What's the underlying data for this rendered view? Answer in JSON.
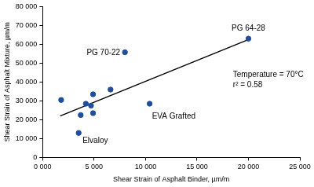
{
  "chart_data": {
    "type": "scatter",
    "x_label": "Shear Strain of Asphalt Binder, µm/m",
    "y_label": "Shear Strain of Asphalt Mixture, µm/m",
    "series": [
      {
        "type": "scatter",
        "color": "#1f4e9e",
        "marker": "circle",
        "x": [
          1800,
          3500,
          3700,
          4200,
          4700,
          4900,
          4900,
          6600,
          8000,
          10400,
          20000
        ],
        "values": [
          30500,
          13000,
          22500,
          28500,
          27500,
          33500,
          23500,
          36000,
          55800,
          28500,
          63000
        ],
        "point_labels": [
          null,
          "Elvaloy",
          null,
          null,
          null,
          null,
          null,
          null,
          "PG 70-22",
          "EVA Grafted",
          "PG 64-28"
        ]
      },
      {
        "type": "line",
        "color": "#000000",
        "line_style": "solid",
        "x": [
          1700,
          20000
        ],
        "values": [
          22000,
          62500
        ]
      }
    ],
    "annotations": [
      "Temperature = 70°C",
      "r² = 0.58"
    ],
    "xlim": [
      0,
      25000
    ],
    "xticks": [
      {
        "value": 0,
        "label": "0 000"
      },
      {
        "value": 5000,
        "label": "5 000"
      },
      {
        "value": 10000,
        "label": "10 000"
      },
      {
        "value": 15000,
        "label": "15 000"
      },
      {
        "value": 20000,
        "label": "20 000"
      },
      {
        "value": 25000,
        "label": "25 000"
      }
    ],
    "ylim": [
      0,
      80000
    ],
    "yticks": [
      0,
      {
        "value": 10000,
        "label": "10 000"
      },
      {
        "value": 20000,
        "label": "20 000"
      },
      {
        "value": 30000,
        "label": "30 000"
      },
      {
        "value": 40000,
        "label": "40 000"
      },
      {
        "value": 50000,
        "label": "50 000"
      },
      {
        "value": 60000,
        "label": "60 000"
      },
      {
        "value": 70000,
        "label": "70 000"
      },
      {
        "value": 80000,
        "label": "80 000"
      }
    ],
    "grid": false
  }
}
